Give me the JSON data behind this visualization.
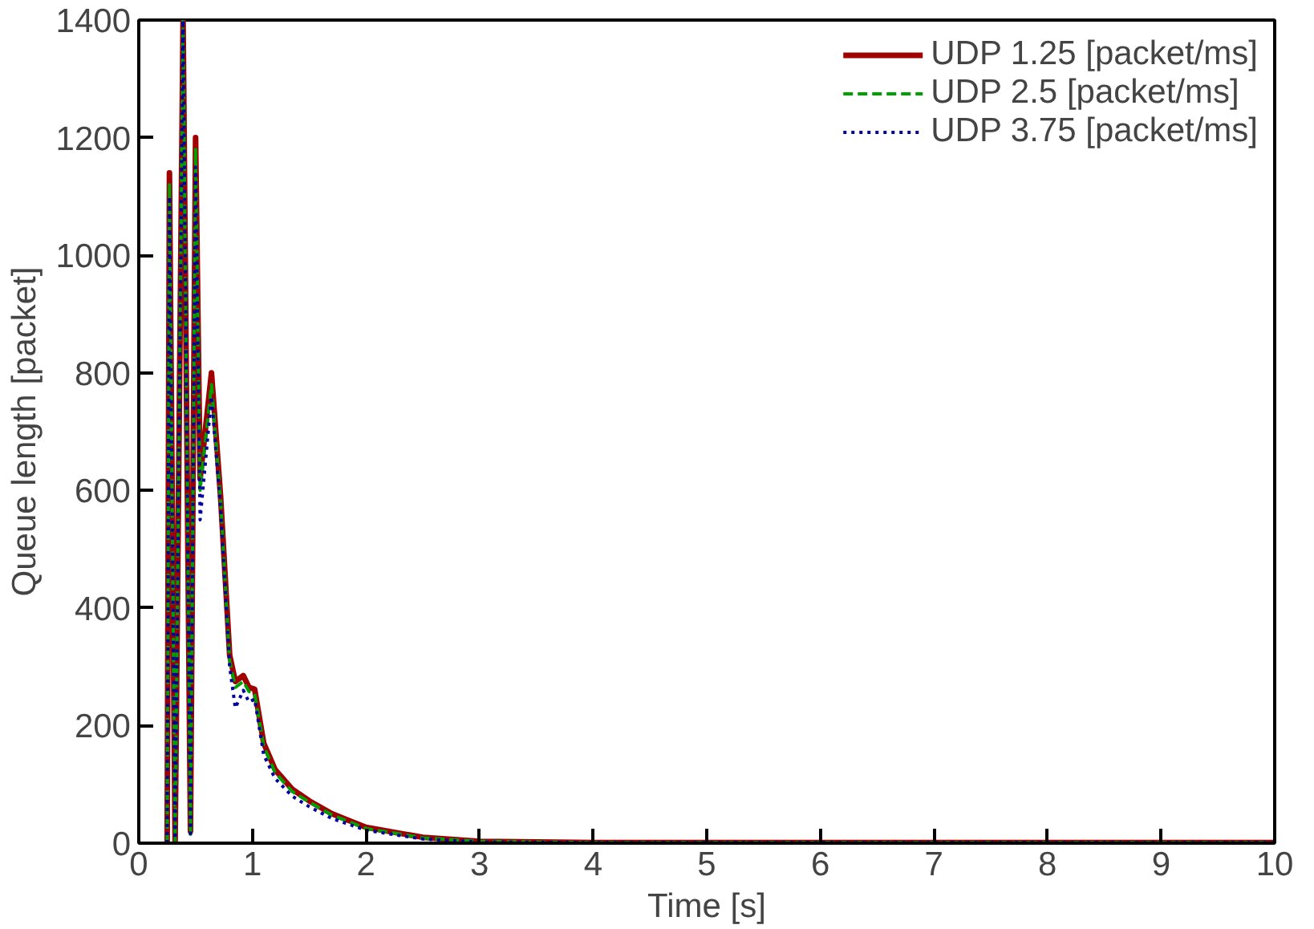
{
  "chart_data": {
    "type": "line",
    "xlabel": "Time [s]",
    "ylabel": "Queue length [packet]",
    "xlim": [
      0,
      10
    ],
    "ylim": [
      0,
      1400
    ],
    "xticks": [
      0,
      1,
      2,
      3,
      4,
      5,
      6,
      7,
      8,
      9,
      10
    ],
    "yticks": [
      0,
      200,
      400,
      600,
      800,
      1000,
      1200,
      1400
    ],
    "grid": false,
    "legend": "top right",
    "series": [
      {
        "name": "UDP 1.25 [packet/ms]",
        "color": "#a00000",
        "line_style": "solid",
        "x": [
          0.25,
          0.27,
          0.32,
          0.39,
          0.455,
          0.5,
          0.54,
          0.64,
          0.72,
          0.8,
          0.85,
          0.92,
          0.97,
          1.02,
          1.1,
          1.2,
          1.35,
          1.5,
          1.7,
          2.0,
          2.5,
          3.0,
          4.0,
          6.0,
          8.0,
          10.0
        ],
        "values": [
          0,
          1140,
          0,
          1400,
          20,
          1200,
          620,
          800,
          590,
          320,
          275,
          285,
          265,
          262,
          170,
          125,
          92,
          72,
          50,
          27,
          10,
          3,
          1,
          1,
          1,
          1
        ]
      },
      {
        "name": "UDP 2.5 [packet/ms]",
        "color": "#00a000",
        "line_style": "dashed",
        "x": [
          0.25,
          0.27,
          0.32,
          0.39,
          0.455,
          0.5,
          0.54,
          0.64,
          0.72,
          0.8,
          0.85,
          0.92,
          0.97,
          1.02,
          1.1,
          1.2,
          1.35,
          1.5,
          1.7,
          2.0,
          2.5,
          3.0,
          4.0,
          6.0,
          8.0,
          10.0
        ],
        "values": [
          0,
          1120,
          0,
          1400,
          15,
          1180,
          600,
          780,
          585,
          310,
          265,
          275,
          258,
          255,
          165,
          120,
          88,
          70,
          48,
          25,
          9,
          3,
          1,
          1,
          1,
          1
        ]
      },
      {
        "name": "UDP 3.75 [packet/ms]",
        "color": "#0000a0",
        "line_style": "dotted",
        "x": [
          0.25,
          0.27,
          0.32,
          0.39,
          0.455,
          0.5,
          0.54,
          0.64,
          0.72,
          0.8,
          0.85,
          0.92,
          0.97,
          1.02,
          1.1,
          1.2,
          1.35,
          1.5,
          1.7,
          2.0,
          2.5,
          3.0,
          4.0,
          6.0,
          8.0,
          10.0
        ],
        "values": [
          0,
          1100,
          0,
          1400,
          10,
          1150,
          550,
          760,
          570,
          300,
          230,
          260,
          240,
          245,
          150,
          110,
          80,
          62,
          42,
          22,
          7,
          2,
          1,
          1,
          1,
          1
        ]
      }
    ]
  }
}
